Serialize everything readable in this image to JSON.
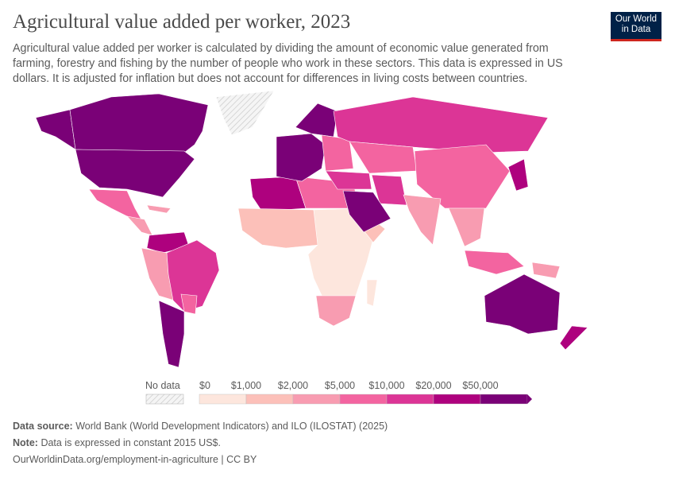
{
  "header": {
    "title": "Agricultural value added per worker, 2023",
    "subtitle": "Agricultural value added per worker is calculated by dividing the amount of economic value generated from farming, forestry and fishing by the number of people who work in these sectors. This data is expressed in US dollars. It is adjusted for inflation but does not account for differences in living costs between countries.",
    "logo": "Our World in Data"
  },
  "legend": {
    "no_data_label": "No data",
    "ticks": [
      "$0",
      "$1,000",
      "$2,000",
      "$5,000",
      "$10,000",
      "$20,000",
      "$50,000"
    ],
    "colors": [
      "#fde6dd",
      "#fcc0b9",
      "#f89cb1",
      "#f364a0",
      "#dc3596",
      "#ae017e",
      "#7a0177"
    ],
    "no_data_color": "#e6e6e6"
  },
  "footer": {
    "source_label": "Data source:",
    "source": "World Bank (World Development Indicators) and ILO (ILOSTAT) (2025)",
    "note_label": "Note:",
    "note": "Data is expressed in constant 2015 US$.",
    "link": "OurWorldinData.org/employment-in-agriculture | CC BY"
  }
}
